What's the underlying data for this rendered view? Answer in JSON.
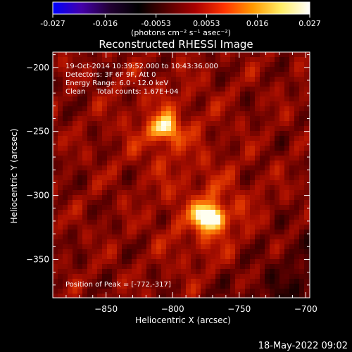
{
  "colorbar": {
    "tick_labels": [
      "-0.027",
      "-0.016",
      "-0.0053",
      "0.0053",
      "0.016",
      "0.027"
    ],
    "tick_values": [
      -0.027,
      -0.016,
      -0.0053,
      0.0053,
      0.016,
      0.027
    ],
    "range": [
      -0.027,
      0.027
    ],
    "units_label": "(photons cm⁻² s⁻¹ asec⁻²)",
    "colors": [
      "#0000ff",
      "#4400aa",
      "#220033",
      "#000000",
      "#550000",
      "#aa0000",
      "#ff3300",
      "#ff9900",
      "#ffee66",
      "#ffffff"
    ]
  },
  "chart_data": {
    "type": "heatmap",
    "title": "Reconstructed RHESSI Image",
    "xlabel": "Heliocentric X (arcsec)",
    "ylabel": "Heliocentric Y (arcsec)",
    "xlim": [
      -890,
      -697
    ],
    "ylim": [
      -380,
      -188
    ],
    "x_ticks": [
      -850,
      -800,
      -750,
      -700
    ],
    "x_tick_labels": [
      "−850",
      "−800",
      "−750",
      "−700"
    ],
    "y_ticks": [
      -200,
      -250,
      -300,
      -350
    ],
    "y_tick_labels": [
      "−200",
      "−250",
      "−300",
      "−350"
    ],
    "sources": [
      {
        "x": -772,
        "y": -317,
        "peak": 0.027
      },
      {
        "x": -806,
        "y": -248,
        "peak": 0.02
      }
    ],
    "annotations": [
      "19-Oct-2014 10:39:52.000 to 10:43:36.000",
      "Detectors: 3F 6F 9F, Att 0",
      "Energy Range: 6.0 - 12.0 keV",
      "Clean     Total counts: 1.67E+04"
    ],
    "peak_label": "Position of Peak = [-772,-317]"
  },
  "footer": {
    "timestamp": "18-May-2022 09:02"
  }
}
